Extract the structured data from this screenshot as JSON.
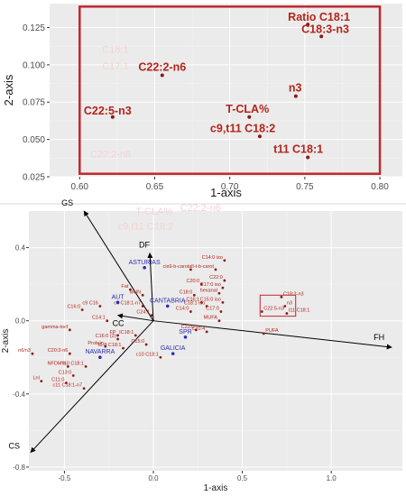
{
  "chart_data": [
    {
      "type": "scatter",
      "title": "",
      "xlabel": "1-axis",
      "ylabel": "2-axis",
      "xlim": [
        0.58,
        0.815
      ],
      "ylim": [
        0.025,
        0.141
      ],
      "xticks": [
        0.6,
        0.65,
        0.7,
        0.75,
        0.8
      ],
      "xtick_labels": [
        "0.60",
        "0.65",
        "0.70",
        "0.75",
        "0.80"
      ],
      "yticks": [
        0.025,
        0.05,
        0.075,
        0.1,
        0.125
      ],
      "ytick_labels": [
        "0.025",
        "0.050",
        "0.075",
        "0.100",
        "0.125"
      ],
      "grid": true,
      "highlight_color": "#c0282d",
      "point_color": "#8b1a1a",
      "points": [
        {
          "name": "Ratio C18:1",
          "x": 0.752,
          "y": 0.127
        },
        {
          "name": "C18:3-n3",
          "x": 0.761,
          "y": 0.119
        },
        {
          "name": "C22:2-n6",
          "x": 0.655,
          "y": 0.093
        },
        {
          "name": "n3",
          "x": 0.744,
          "y": 0.079
        },
        {
          "name": "C22:5-n3",
          "x": 0.622,
          "y": 0.065
        },
        {
          "name": "T-CLA%",
          "x": 0.713,
          "y": 0.065
        },
        {
          "name": "c9,t11 C18:2",
          "x": 0.72,
          "y": 0.052
        },
        {
          "name": "t11 C18:1",
          "x": 0.752,
          "y": 0.038
        }
      ],
      "ghost_labels": [
        "C18:1",
        "C17:1",
        "C22:2-n6"
      ]
    },
    {
      "type": "scatter",
      "title": "",
      "xlabel": "1-axis",
      "ylabel": "2-axis",
      "xlim": [
        -0.7,
        1.4
      ],
      "ylim": [
        -0.82,
        0.6
      ],
      "xticks": [
        -0.5,
        0,
        0.5,
        1
      ],
      "xtick_labels": [
        "-0.5",
        "0.0",
        "0.5",
        "1.0"
      ],
      "yticks": [
        -0.8,
        -0.4,
        0,
        0.4
      ],
      "ytick_labels": [
        "-0.8",
        "-0.4",
        "0.0",
        "0.4"
      ],
      "grid": true,
      "vectors": [
        {
          "name": "GS",
          "x": -0.39,
          "y": 0.6
        },
        {
          "name": "DF",
          "x": -0.02,
          "y": 0.37
        },
        {
          "name": "FH",
          "x": 1.34,
          "y": -0.145
        },
        {
          "name": "CS",
          "x": -0.69,
          "y": -0.72
        },
        {
          "name": "CC",
          "x": -0.2,
          "y": 0.03
        }
      ],
      "regions": [
        {
          "name": "ASTURIAS",
          "x": -0.05,
          "y": 0.31
        },
        {
          "name": "AUT",
          "x": -0.2,
          "y": 0.12
        },
        {
          "name": "CANTABRIA",
          "x": 0.08,
          "y": 0.1
        },
        {
          "name": "SPR",
          "x": 0.18,
          "y": -0.07
        },
        {
          "name": "GALICIA",
          "x": 0.11,
          "y": -0.16
        },
        {
          "name": "NAVARRA",
          "x": -0.3,
          "y": -0.18
        }
      ],
      "variables": [
        {
          "name": "C14:0 iso",
          "x": 0.4,
          "y": 0.33
        },
        {
          "name": "cis9-b-carot",
          "x": 0.21,
          "y": 0.28
        },
        {
          "name": "all-t-b-carot",
          "x": 0.35,
          "y": 0.28
        },
        {
          "name": "C22:0",
          "x": 0.4,
          "y": 0.22
        },
        {
          "name": "C20:0",
          "x": 0.27,
          "y": 0.2
        },
        {
          "name": "C17:0 iso",
          "x": 0.39,
          "y": 0.18
        },
        {
          "name": "hexanal",
          "x": 0.37,
          "y": 0.15
        },
        {
          "name": "C18:0",
          "x": 0.23,
          "y": 0.14
        },
        {
          "name": "C16:1",
          "x": 0.27,
          "y": 0.1
        },
        {
          "name": "C18:1 iso",
          "x": 0.3,
          "y": 0.08
        },
        {
          "name": "C15:0 iso",
          "x": 0.39,
          "y": 0.1
        },
        {
          "name": "C14:0",
          "x": 0.21,
          "y": 0.05
        },
        {
          "name": "C17:0",
          "x": 0.38,
          "y": 0.05
        },
        {
          "name": "MUFA",
          "x": 0.37,
          "y": 0.0
        },
        {
          "name": "C23:0",
          "x": 0.24,
          "y": -0.05
        },
        {
          "name": "PUFA",
          "x": 0.62,
          "y": -0.07
        },
        {
          "name": "C16:0",
          "x": -0.4,
          "y": 0.06
        },
        {
          "name": "c9 C16",
          "x": -0.3,
          "y": 0.08
        },
        {
          "name": "C14:1",
          "x": -0.26,
          "y": 0.0
        },
        {
          "name": "MUN",
          "x": -0.06,
          "y": 0.14
        },
        {
          "name": "Fat",
          "x": -0.13,
          "y": 0.17
        },
        {
          "name": "c9 C18:1-n7",
          "x": -0.06,
          "y": 0.08
        },
        {
          "name": "gamma-tocf",
          "x": -0.47,
          "y": -0.05
        },
        {
          "name": "FP",
          "x": -0.2,
          "y": -0.08
        },
        {
          "name": "IC18:1",
          "x": -0.1,
          "y": -0.08
        },
        {
          "name": "C16:0 (2)",
          "x": -0.2,
          "y": -0.1
        },
        {
          "name": "C15:0",
          "x": -0.04,
          "y": -0.13
        },
        {
          "name": "t6-8 C18:1",
          "x": -0.17,
          "y": -0.15
        },
        {
          "name": "Protein",
          "x": -0.27,
          "y": -0.14
        },
        {
          "name": "n6/n3",
          "x": -0.68,
          "y": -0.18
        },
        {
          "name": "C20:3-n6",
          "x": -0.47,
          "y": -0.18
        },
        {
          "name": "NFDM%",
          "x": -0.48,
          "y": -0.25
        },
        {
          "name": "t10 C18:1",
          "x": -0.38,
          "y": -0.25
        },
        {
          "name": "C13:0",
          "x": -0.45,
          "y": -0.3
        },
        {
          "name": "Lnl",
          "x": -0.63,
          "y": -0.33
        },
        {
          "name": "C11:0",
          "x": -0.49,
          "y": -0.34
        },
        {
          "name": "c11 C18:1-n7",
          "x": -0.39,
          "y": -0.37
        },
        {
          "name": "c10 C18:1",
          "x": 0.04,
          "y": -0.2
        },
        {
          "name": "C24:1",
          "x": -0.01,
          "y": 0.03
        },
        {
          "name": "C20:4",
          "x": 0.3,
          "y": -0.06
        },
        {
          "name": "C22:5-n3",
          "x": 0.61,
          "y": 0.05
        },
        {
          "name": "C18:3-n3",
          "x": 0.72,
          "y": 0.13
        },
        {
          "name": "n3",
          "x": 0.74,
          "y": 0.08
        },
        {
          "name": "t11 C18:1",
          "x": 0.75,
          "y": 0.04
        }
      ],
      "highlight_box": {
        "x0": 0.6,
        "x1": 0.8,
        "y0": 0.025,
        "y1": 0.14
      },
      "ghost_labels": [
        "T-CLA%",
        "C22:2-n6",
        "c9,t11 C18:2"
      ],
      "colors": {
        "vector": "#000000",
        "region": "#2b2bb3",
        "variable": "#b3241a",
        "point": "#8b1a1a"
      }
    }
  ]
}
